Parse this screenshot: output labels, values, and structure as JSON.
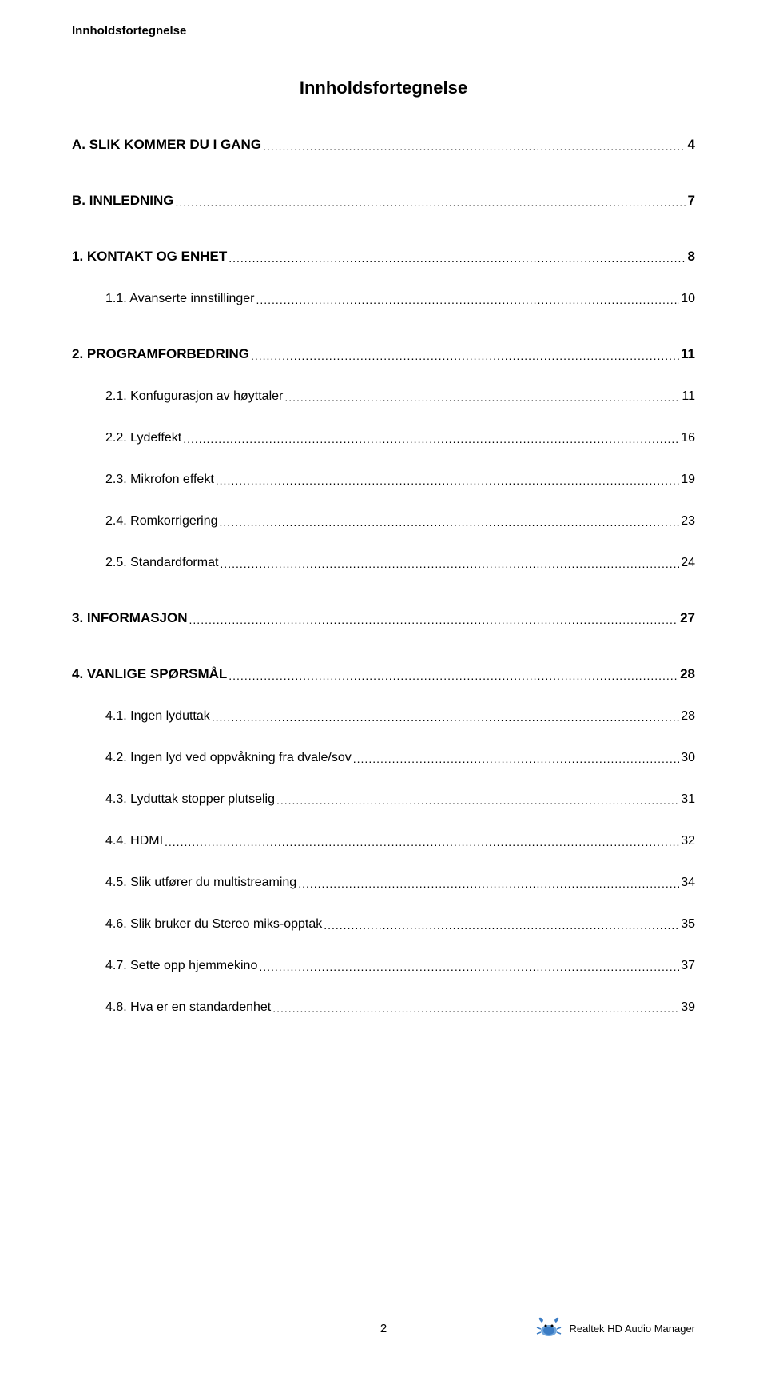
{
  "header": "Innholdsfortegnelse",
  "title": "Innholdsfortegnelse",
  "colors": {
    "text": "#000000",
    "background": "#ffffff",
    "icon_body": "#3b7cc4",
    "icon_body_light": "#6fa5db"
  },
  "sections": [
    {
      "label": "A.    SLIK KOMMER DU I GANG",
      "page": "4",
      "children": []
    },
    {
      "label": "B.    INNLEDNING",
      "page": "7",
      "children": []
    },
    {
      "label": "1.    KONTAKT OG ENHET",
      "page": "8",
      "children": [
        {
          "label": "1.1.    Avanserte innstillinger",
          "page": "10"
        }
      ]
    },
    {
      "label": "2.    PROGRAMFORBEDRING",
      "page": "11",
      "children": [
        {
          "label": "2.1.    Konfugurasjon av høyttaler",
          "page": "11"
        },
        {
          "label": "2.2.    Lydeffekt",
          "page": "16"
        },
        {
          "label": "2.3.    Mikrofon effekt",
          "page": "19"
        },
        {
          "label": "2.4.    Romkorrigering",
          "page": "23"
        },
        {
          "label": "2.5.    Standardformat",
          "page": "24"
        }
      ]
    },
    {
      "label": "3.    INFORMASJON",
      "page": "27",
      "children": []
    },
    {
      "label": "4.    VANLIGE SPØRSMÅL",
      "page": "28",
      "children": [
        {
          "label": "4.1.    Ingen lyduttak",
          "page": "28"
        },
        {
          "label": "4.2.    Ingen lyd ved oppvåkning fra dvale/sov",
          "page": "30"
        },
        {
          "label": "4.3.    Lyduttak stopper plutselig",
          "page": "31"
        },
        {
          "label": "4.4.    HDMI",
          "page": "32"
        },
        {
          "label": "4.5.    Slik utfører du multistreaming",
          "page": "34"
        },
        {
          "label": "4.6.    Slik bruker du Stereo miks-opptak",
          "page": "35"
        },
        {
          "label": "4.7.    Sette opp hjemmekino",
          "page": "37"
        },
        {
          "label": "4.8.    Hva er en standardenhet",
          "page": "39"
        }
      ]
    }
  ],
  "footer": {
    "page_number": "2",
    "brand": "Realtek HD Audio Manager"
  }
}
